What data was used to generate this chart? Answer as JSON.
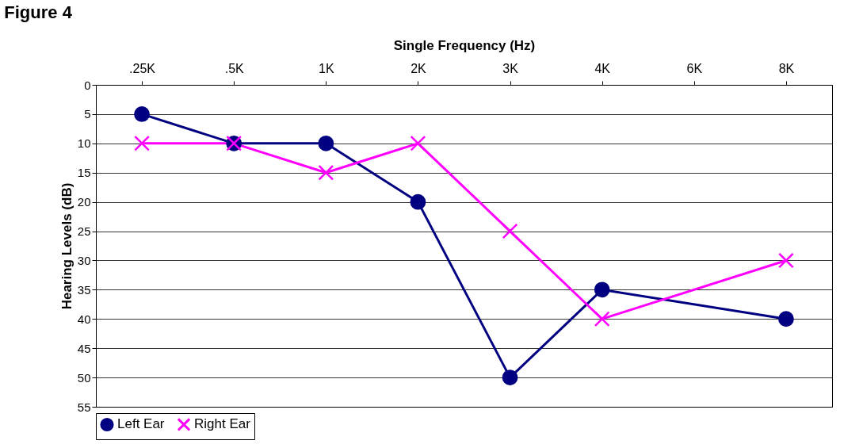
{
  "chart_data": {
    "type": "line",
    "title": "Figure 4",
    "xlabel": "Single Frequency (Hz)",
    "ylabel": "Hearing Levels (dB)",
    "categories": [
      ".25K",
      ".5K",
      "1K",
      "2K",
      "3K",
      "4K",
      "6K",
      "8K"
    ],
    "series": [
      {
        "name": "Left Ear",
        "color": "#000080",
        "marker": "circle",
        "values": [
          5,
          10,
          10,
          20,
          50,
          35,
          null,
          40
        ]
      },
      {
        "name": "Right Ear",
        "color": "#ff00ff",
        "marker": "cross",
        "values": [
          10,
          10,
          15,
          10,
          25,
          40,
          null,
          30
        ]
      }
    ],
    "ylim": [
      55,
      0
    ],
    "yticks": [
      0,
      5,
      10,
      15,
      20,
      25,
      30,
      35,
      40,
      45,
      50,
      55
    ],
    "grid": "y",
    "legend": "bottom",
    "line_style": "solid"
  }
}
